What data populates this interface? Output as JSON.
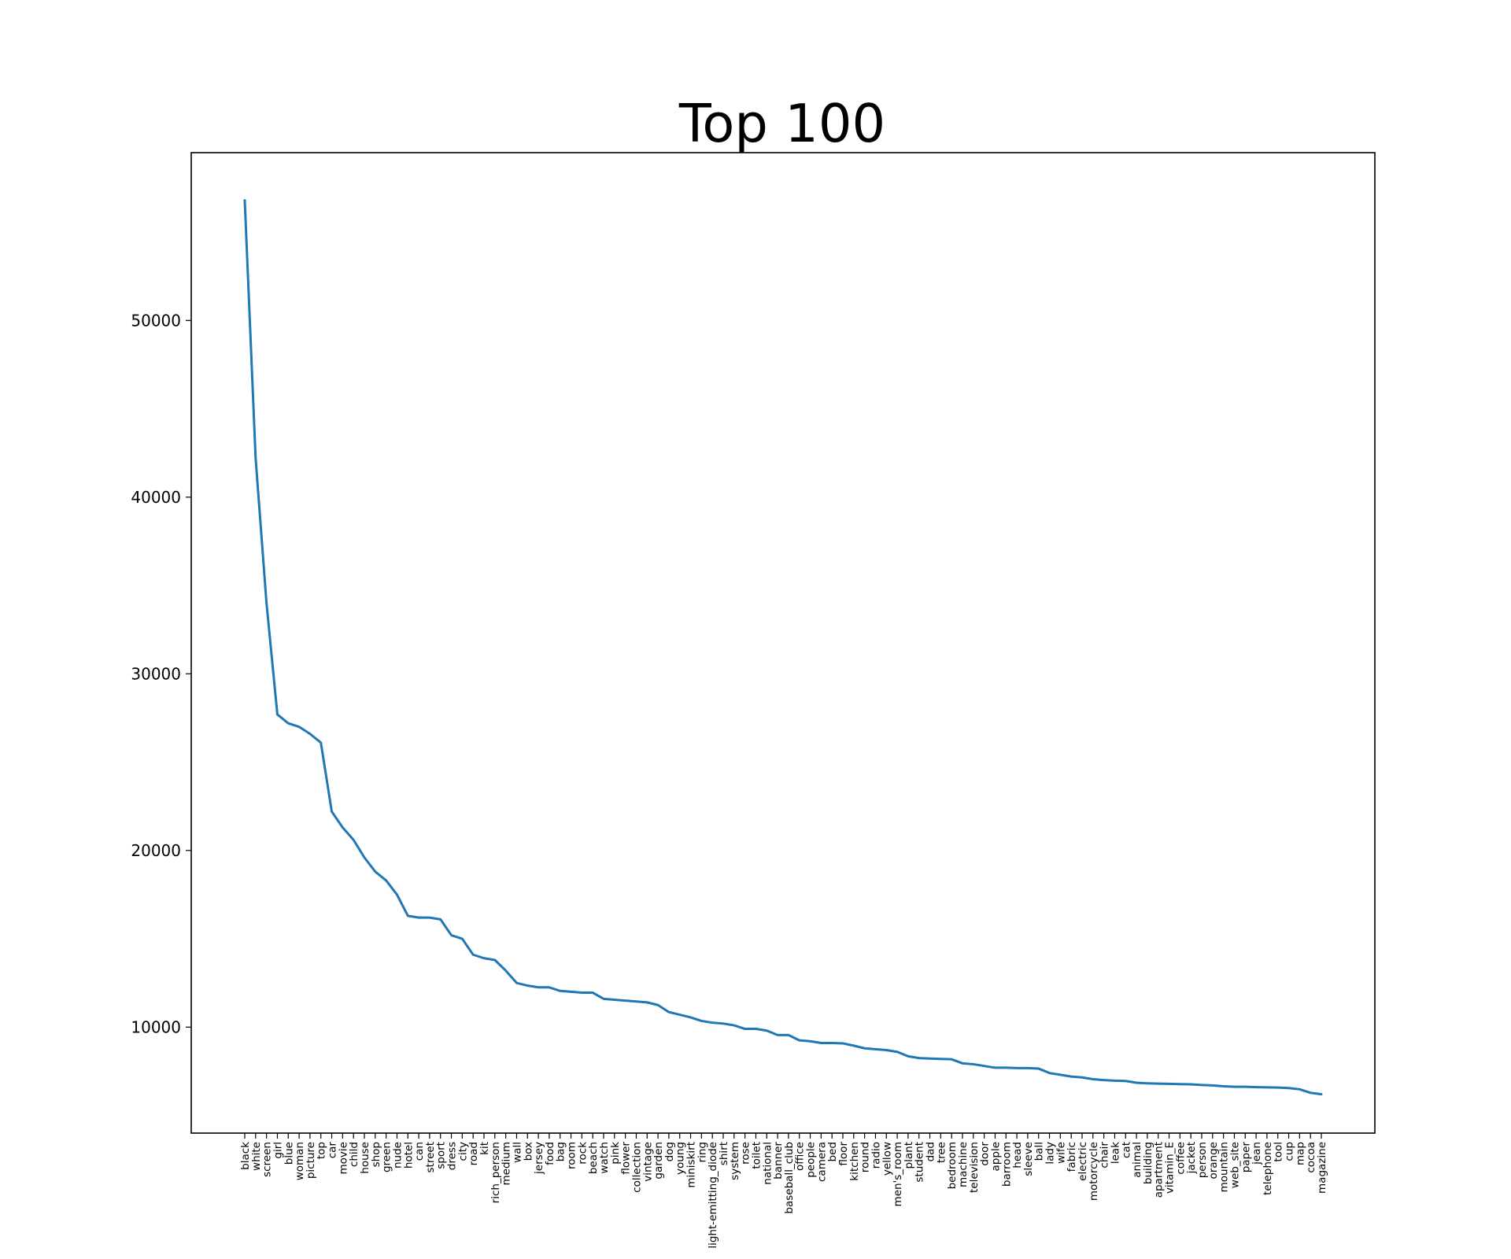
{
  "chart_data": {
    "type": "line",
    "title": "Top 100",
    "xlabel": "",
    "ylabel": "",
    "ylim": [
      4000,
      59500
    ],
    "yticks": [
      10000,
      20000,
      30000,
      40000,
      50000
    ],
    "ytick_labels": [
      "10000",
      "20000",
      "30000",
      "40000",
      "50000"
    ],
    "grid": false,
    "legend": "none",
    "line_color": "#1f77b4",
    "categories": [
      "black",
      "white",
      "screen",
      "girl",
      "blue",
      "woman",
      "picture",
      "top",
      "car",
      "movie",
      "child",
      "house",
      "shop",
      "green",
      "nude",
      "hotel",
      "can",
      "street",
      "sport",
      "dress",
      "city",
      "road",
      "kit",
      "rich_person",
      "medium",
      "wall",
      "box",
      "jersey",
      "food",
      "bag",
      "room",
      "rock",
      "beach",
      "watch",
      "pink",
      "flower",
      "collection",
      "vintage",
      "garden",
      "dog",
      "young",
      "miniskirt",
      "ring",
      "light-emitting_diode",
      "shirt",
      "system",
      "rose",
      "toilet",
      "national",
      "banner",
      "baseball_club",
      "office",
      "people",
      "camera",
      "bed",
      "floor",
      "kitchen",
      "round",
      "radio",
      "yellow",
      "men's_room",
      "plant",
      "student",
      "dad",
      "tree",
      "bedroom",
      "machine",
      "television",
      "door",
      "apple",
      "barroom",
      "head",
      "sleeve",
      "ball",
      "lady",
      "wife",
      "fabric",
      "electric",
      "motorcycle",
      "chair",
      "leak",
      "cat",
      "animal",
      "building",
      "apartment",
      "vitamin_E",
      "coffee",
      "jacket",
      "person",
      "orange",
      "mountain",
      "web_site",
      "paper",
      "jean",
      "telephone",
      "tool",
      "cup",
      "map",
      "cocoa",
      "magazine"
    ],
    "values": [
      56800,
      42200,
      34000,
      27700,
      27200,
      27000,
      26600,
      26100,
      22200,
      21300,
      20600,
      19600,
      18800,
      18300,
      17500,
      16300,
      16200,
      16200,
      16100,
      15200,
      15000,
      14100,
      13900,
      13800,
      13200,
      12500,
      12350,
      12250,
      12250,
      12050,
      12000,
      11950,
      11950,
      11600,
      11550,
      11500,
      11450,
      11400,
      11250,
      10850,
      10700,
      10550,
      10350,
      10250,
      10200,
      10100,
      9900,
      9900,
      9800,
      9550,
      9550,
      9250,
      9200,
      9100,
      9100,
      9080,
      8950,
      8800,
      8750,
      8700,
      8600,
      8350,
      8250,
      8220,
      8200,
      8180,
      7950,
      7900,
      7800,
      7700,
      7700,
      7680,
      7680,
      7650,
      7400,
      7300,
      7200,
      7150,
      7050,
      7000,
      6970,
      6950,
      6850,
      6820,
      6800,
      6790,
      6770,
      6760,
      6720,
      6700,
      6650,
      6620,
      6620,
      6600,
      6590,
      6580,
      6550,
      6480,
      6280,
      6200
    ]
  }
}
